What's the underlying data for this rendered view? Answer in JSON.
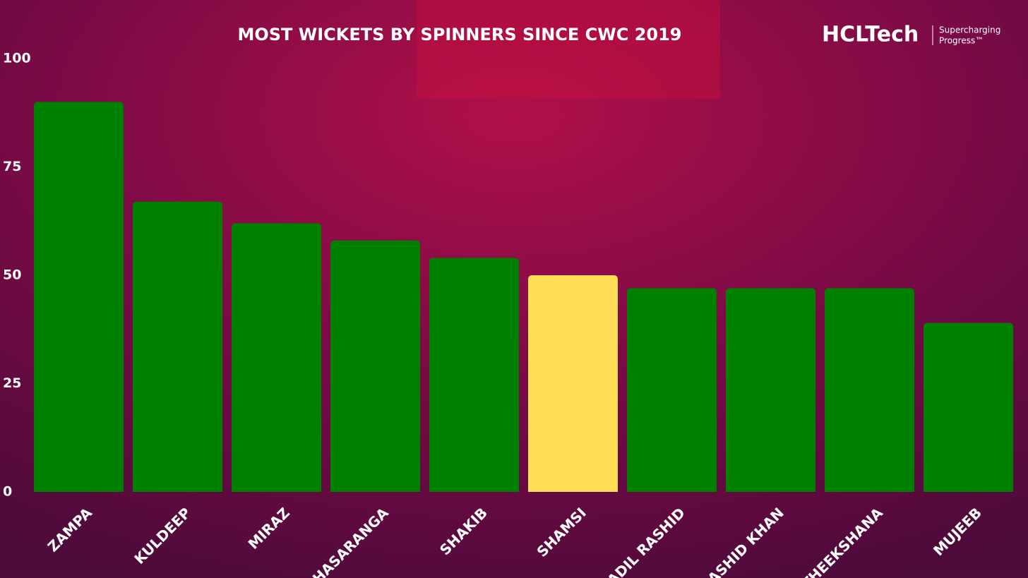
{
  "chart_data": {
    "type": "bar",
    "title": "MOST WICKETS BY SPINNERS SINCE CWC 2019",
    "categories": [
      "ZAMPA",
      "KULDEEP",
      "MIRAZ",
      "HASARANGA",
      "SHAKIB",
      "SHAMSI",
      "ADIL RASHID",
      "RASHID KHAN",
      "THEEKSHANA",
      "MUJEEB"
    ],
    "values": [
      90,
      67,
      62,
      58,
      54,
      50,
      47,
      47,
      47,
      39
    ],
    "colors": [
      "#008000",
      "#008000",
      "#008000",
      "#008000",
      "#008000",
      "#ffdd55",
      "#008000",
      "#008000",
      "#008000",
      "#008000"
    ],
    "ylim": [
      0,
      100
    ],
    "yticks": [
      0,
      25,
      50,
      75,
      100
    ],
    "grid": false
  },
  "logo": {
    "name": "HCLTech",
    "tagline": [
      "Supercharging",
      "Progress™"
    ]
  }
}
